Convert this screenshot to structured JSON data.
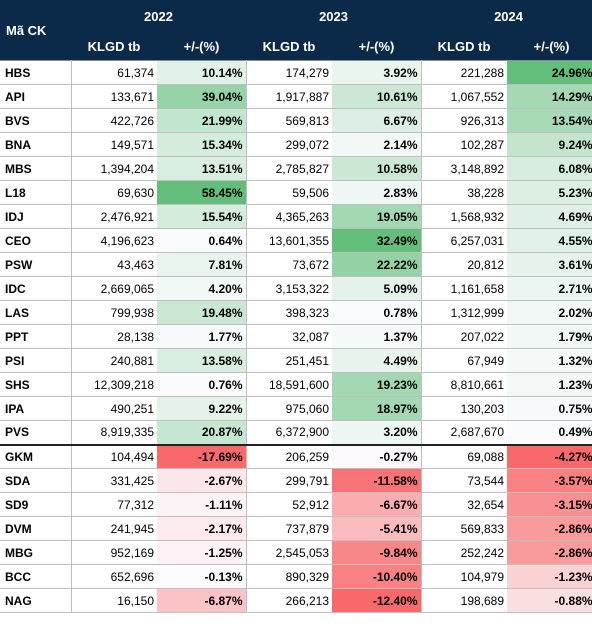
{
  "header": {
    "code_label": "Mã CK",
    "years": [
      "2022",
      "2023",
      "2024"
    ],
    "vol_label": "KLGD tb",
    "pct_label": "+/-(%)"
  },
  "colors": {
    "header_bg": "#0b2a4a",
    "pos_scale_end": "#63be7b",
    "neg_scale_end": "#f8696b",
    "neutral": "#fcfcff"
  },
  "rows": [
    {
      "code": "HBS",
      "vals": [
        [
          "61,374",
          "10.14%"
        ],
        [
          "174,279",
          "3.92%"
        ],
        [
          "221,288",
          "24.96%"
        ]
      ]
    },
    {
      "code": "API",
      "vals": [
        [
          "133,671",
          "39.04%"
        ],
        [
          "1,917,887",
          "10.61%"
        ],
        [
          "1,067,552",
          "14.29%"
        ]
      ]
    },
    {
      "code": "BVS",
      "vals": [
        [
          "422,726",
          "21.99%"
        ],
        [
          "569,813",
          "6.67%"
        ],
        [
          "926,313",
          "13.54%"
        ]
      ]
    },
    {
      "code": "BNA",
      "vals": [
        [
          "149,571",
          "15.34%"
        ],
        [
          "299,072",
          "2.14%"
        ],
        [
          "102,287",
          "9.24%"
        ]
      ]
    },
    {
      "code": "MBS",
      "vals": [
        [
          "1,394,204",
          "13.51%"
        ],
        [
          "2,785,827",
          "10.58%"
        ],
        [
          "3,148,892",
          "6.08%"
        ]
      ]
    },
    {
      "code": "L18",
      "vals": [
        [
          "69,630",
          "58.45%"
        ],
        [
          "59,506",
          "2.83%"
        ],
        [
          "38,228",
          "5.23%"
        ]
      ]
    },
    {
      "code": "IDJ",
      "vals": [
        [
          "2,476,921",
          "15.54%"
        ],
        [
          "4,365,263",
          "19.05%"
        ],
        [
          "1,568,932",
          "4.69%"
        ]
      ]
    },
    {
      "code": "CEO",
      "vals": [
        [
          "4,196,623",
          "0.64%"
        ],
        [
          "13,601,355",
          "32.49%"
        ],
        [
          "6,257,031",
          "4.55%"
        ]
      ]
    },
    {
      "code": "PSW",
      "vals": [
        [
          "43,463",
          "7.81%"
        ],
        [
          "73,672",
          "22.22%"
        ],
        [
          "20,812",
          "3.61%"
        ]
      ]
    },
    {
      "code": "IDC",
      "vals": [
        [
          "2,669,065",
          "4.20%"
        ],
        [
          "3,153,322",
          "5.09%"
        ],
        [
          "1,161,658",
          "2.71%"
        ]
      ]
    },
    {
      "code": "LAS",
      "vals": [
        [
          "799,938",
          "19.48%"
        ],
        [
          "398,323",
          "0.78%"
        ],
        [
          "1,312,999",
          "2.02%"
        ]
      ]
    },
    {
      "code": "PPT",
      "vals": [
        [
          "28,138",
          "1.77%"
        ],
        [
          "32,087",
          "1.37%"
        ],
        [
          "207,022",
          "1.79%"
        ]
      ]
    },
    {
      "code": "PSI",
      "vals": [
        [
          "240,881",
          "13.58%"
        ],
        [
          "251,451",
          "4.49%"
        ],
        [
          "67,949",
          "1.32%"
        ]
      ]
    },
    {
      "code": "SHS",
      "vals": [
        [
          "12,309,218",
          "0.76%"
        ],
        [
          "18,591,600",
          "19.23%"
        ],
        [
          "8,810,661",
          "1.23%"
        ]
      ]
    },
    {
      "code": "IPA",
      "vals": [
        [
          "490,251",
          "9.22%"
        ],
        [
          "975,060",
          "18.97%"
        ],
        [
          "130,203",
          "0.75%"
        ]
      ]
    },
    {
      "code": "PVS",
      "vals": [
        [
          "8,919,335",
          "20.87%"
        ],
        [
          "6,372,900",
          "3.20%"
        ],
        [
          "2,687,670",
          "0.49%"
        ]
      ]
    },
    {
      "code": "GKM",
      "vals": [
        [
          "104,494",
          "-17.69%"
        ],
        [
          "206,259",
          "-0.27%"
        ],
        [
          "69,088",
          "-4.27%"
        ]
      ]
    },
    {
      "code": "SDA",
      "vals": [
        [
          "331,425",
          "-2.67%"
        ],
        [
          "299,791",
          "-11.58%"
        ],
        [
          "73,544",
          "-3.57%"
        ]
      ]
    },
    {
      "code": "SD9",
      "vals": [
        [
          "77,312",
          "-1.11%"
        ],
        [
          "52,912",
          "-6.67%"
        ],
        [
          "32,654",
          "-3.15%"
        ]
      ]
    },
    {
      "code": "DVM",
      "vals": [
        [
          "241,945",
          "-2.17%"
        ],
        [
          "737,879",
          "-5.41%"
        ],
        [
          "569,833",
          "-2.86%"
        ]
      ]
    },
    {
      "code": "MBG",
      "vals": [
        [
          "952,169",
          "-1.25%"
        ],
        [
          "2,545,053",
          "-9.84%"
        ],
        [
          "252,242",
          "-2.86%"
        ]
      ]
    },
    {
      "code": "BCC",
      "vals": [
        [
          "652,696",
          "-0.13%"
        ],
        [
          "890,329",
          "-10.40%"
        ],
        [
          "104,979",
          "-1.23%"
        ]
      ]
    },
    {
      "code": "NAG",
      "vals": [
        [
          "16,150",
          "-6.87%"
        ],
        [
          "266,213",
          "-12.40%"
        ],
        [
          "198,689",
          "-0.88%"
        ]
      ]
    }
  ]
}
